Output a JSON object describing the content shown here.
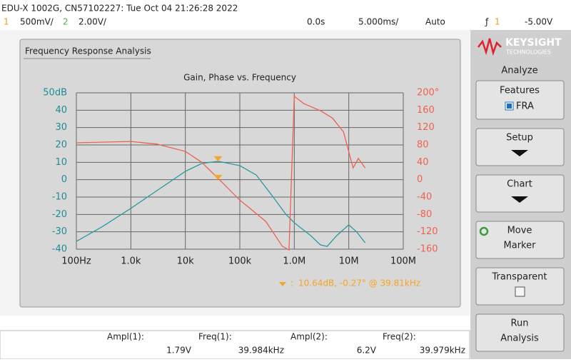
{
  "header": {
    "title": "EDU-X 1002G, CN57102227: Tue Oct 04 21:26:28 2022",
    "ch1": "1",
    "ch1_scale": "500mV/",
    "ch2": "2",
    "ch2_scale": "2.00V/",
    "delay": "0.0s",
    "timebase": "5.000ms/",
    "trigger_mode": "Auto",
    "trigger_source": "1",
    "trigger_level": "-5.00V"
  },
  "panel_title": "Frequency Response Analysis",
  "chart_data": {
    "type": "line",
    "title": "Gain, Phase vs. Frequency",
    "x_log": true,
    "grid": true,
    "xlim": [
      100,
      100000000
    ],
    "xticks": [
      {
        "value": 100,
        "label": "100Hz"
      },
      {
        "value": 1000,
        "label": "1.0k"
      },
      {
        "value": 10000,
        "label": "10k"
      },
      {
        "value": 100000,
        "label": "100k"
      },
      {
        "value": 1000000,
        "label": "1.0M"
      },
      {
        "value": 10000000,
        "label": "10M"
      },
      {
        "value": 100000000,
        "label": "100M"
      }
    ],
    "ylim": [
      -40,
      50
    ],
    "yticks": [
      {
        "value": 50,
        "label": "50dB"
      },
      40,
      30,
      20,
      10,
      0,
      -10,
      -20,
      -30,
      -40
    ],
    "y2lim": [
      -160,
      200
    ],
    "y2ticks": [
      {
        "value": 200,
        "label": "200°"
      },
      160,
      120,
      80,
      40,
      0,
      -40,
      -80,
      -120,
      -160
    ],
    "ycolor": "#1e8c96",
    "y2color": "#f0604f",
    "series": [
      {
        "name": "Gain",
        "color": "#2a9aa0",
        "x": [
          100,
          300,
          1000,
          3000,
          10000,
          20000,
          40000,
          100000,
          200000,
          400000,
          700000,
          1000000,
          2000000,
          3000000,
          4000000,
          6000000,
          10000000,
          14000000,
          20000000
        ],
        "values": [
          -35.5,
          -27,
          -16.5,
          -6.3,
          4.8,
          9.3,
          10.6,
          8.1,
          2.7,
          -9.6,
          -19.9,
          -24.8,
          -32.2,
          -37.5,
          -38.4,
          -32.2,
          -26,
          -30.1,
          -36.3
        ]
      },
      {
        "name": "Phase",
        "color": "#f0604f",
        "axis": "y2",
        "x": [
          100,
          1000,
          3000,
          10000,
          20000,
          40000,
          100000,
          300000,
          600000,
          800000,
          1000000,
          1500000,
          3000000,
          5000000,
          8000000,
          12000000,
          15000000,
          20000000
        ],
        "values": [
          85,
          88,
          82,
          65,
          40,
          3,
          -47,
          -96,
          -153,
          -162,
          192,
          175,
          159,
          142,
          110,
          27,
          49,
          27
        ]
      }
    ],
    "marker": {
      "x": 39810,
      "gain": 10.64,
      "phase": -0.27,
      "color": "#f5a623",
      "label": "10.64dB, -0.27° @ 39.81kHz"
    }
  },
  "measurements": [
    {
      "label": "Ampl(1):",
      "value": "1.79V"
    },
    {
      "label": "Freq(1):",
      "value": "39.984kHz"
    },
    {
      "label": "Ampl(2):",
      "value": "6.2V"
    },
    {
      "label": "Freq(2):",
      "value": "39.979kHz"
    }
  ],
  "sidebar": {
    "brand": "KEYSIGHT",
    "brand_sub": "TECHNOLOGIES",
    "menu": "Analyze",
    "buttons": [
      {
        "label": "Features",
        "sub": "FRA"
      },
      {
        "label": "Setup"
      },
      {
        "label": "Chart"
      },
      {
        "label": "Move",
        "sub": "Marker"
      },
      {
        "label": "Transparent"
      },
      {
        "label": "Run",
        "sub": "Analysis"
      }
    ]
  }
}
